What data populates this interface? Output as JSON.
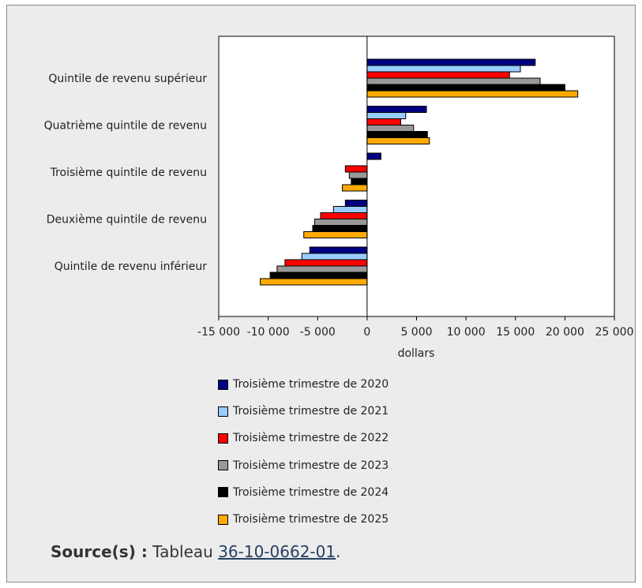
{
  "chart_data": {
    "type": "bar",
    "orientation": "horizontal",
    "categories": [
      "Quintile de revenu supérieur",
      "Quatrième quintile de revenu",
      "Troisième quintile de revenu",
      "Deuxième quintile de revenu",
      "Quintile de revenu inférieur"
    ],
    "series": [
      {
        "name": "Troisième trimestre de 2020",
        "color": "#000080",
        "values": [
          17000,
          6000,
          1400,
          -2200,
          -5800
        ]
      },
      {
        "name": "Troisième trimestre de 2021",
        "color": "#99ccff",
        "values": [
          15500,
          3900,
          0,
          -3400,
          -6600
        ]
      },
      {
        "name": "Troisième trimestre de 2022",
        "color": "#ff0000",
        "values": [
          14400,
          3400,
          -2200,
          -4700,
          -8300
        ]
      },
      {
        "name": "Troisième trimestre de 2023",
        "color": "#999999",
        "values": [
          17500,
          4700,
          -1800,
          -5300,
          -9100
        ]
      },
      {
        "name": "Troisième trimestre de 2024",
        "color": "#000000",
        "values": [
          20000,
          6100,
          -1600,
          -5500,
          -9800
        ]
      },
      {
        "name": "Troisième trimestre de 2025",
        "color": "#ffaa00",
        "values": [
          21300,
          6300,
          -2500,
          -6400,
          -10800
        ]
      }
    ],
    "xlabel": "dollars",
    "xlim": [
      -15000,
      25000
    ],
    "xticks": [
      -15000,
      -10000,
      -5000,
      0,
      5000,
      10000,
      15000,
      20000,
      25000
    ],
    "xtick_labels": [
      "-15 000",
      "-10 000",
      "-5 000",
      "0",
      "5 000",
      "10 000",
      "15 000",
      "20 000",
      "25 000"
    ],
    "grid": false,
    "legend_position": "bottom"
  },
  "source": {
    "label": "Source(s) :",
    "text": "Tableau",
    "link_text": "36-10-0662-01",
    "suffix": "."
  }
}
